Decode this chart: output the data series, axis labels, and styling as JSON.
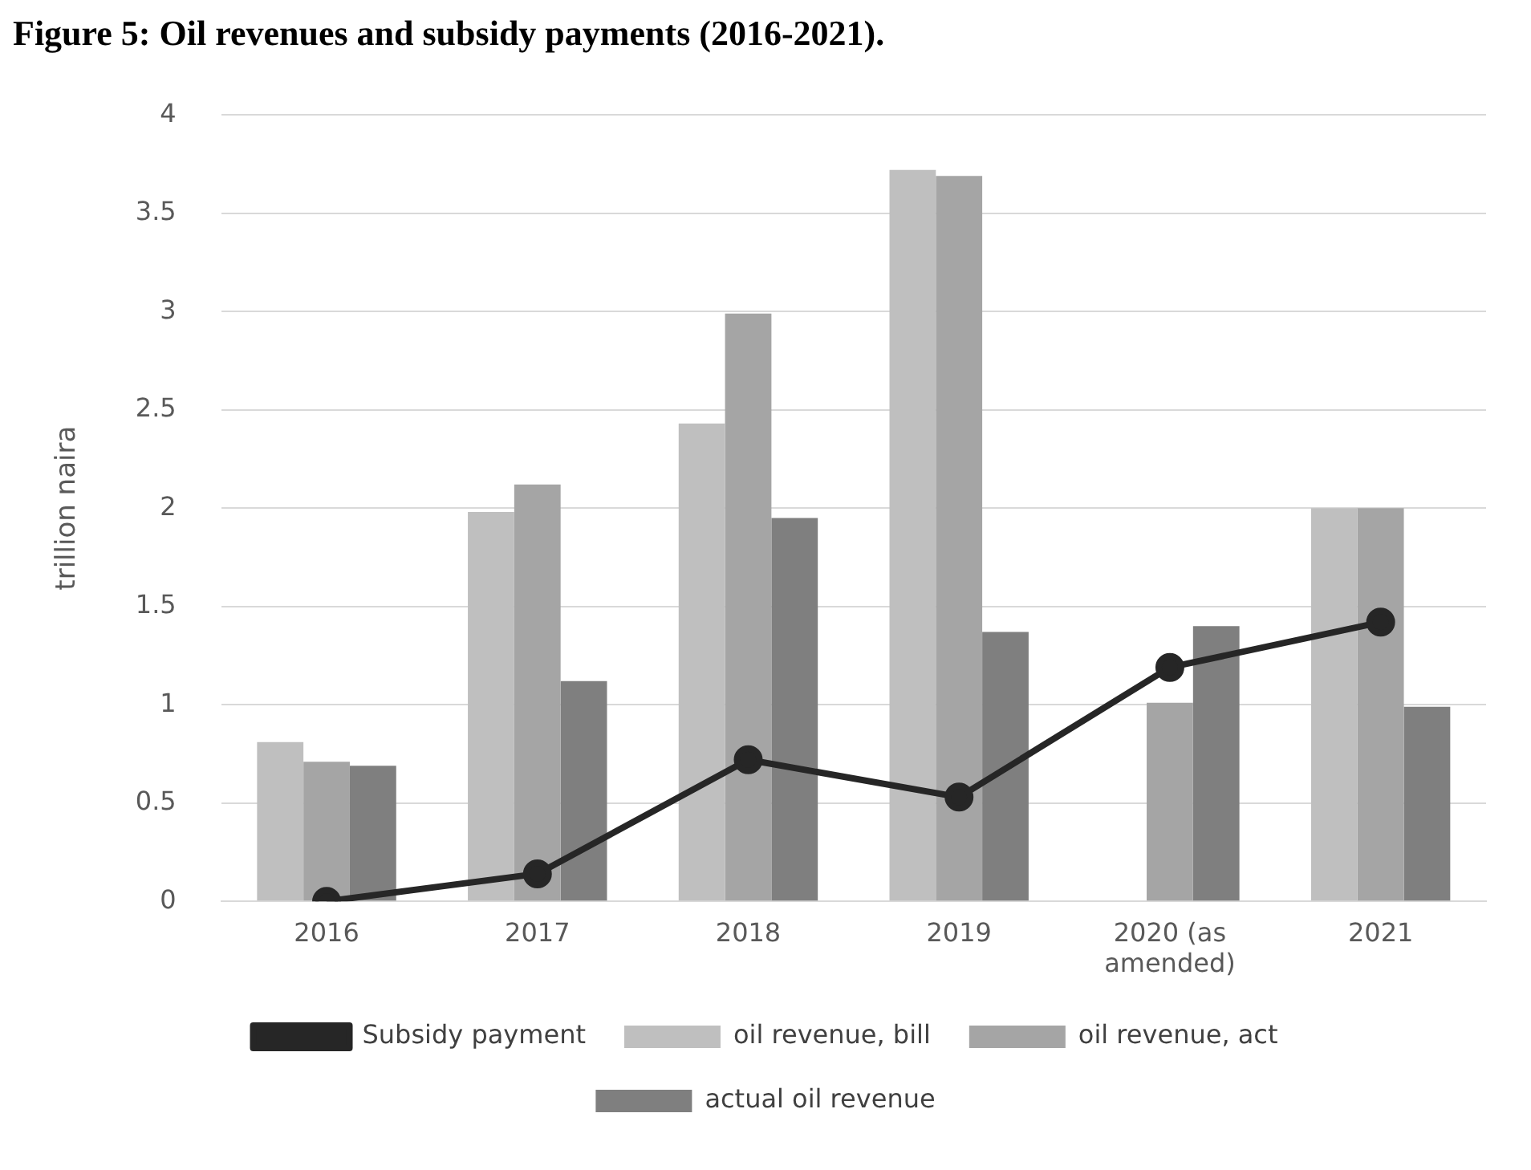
{
  "chart_data": {
    "type": "bar",
    "title": "Figure 5: Oil revenues and subsidy payments (2016-2021).",
    "ylabel": "trillion naira",
    "categories": [
      "2016",
      "2017",
      "2018",
      "2019",
      "2020 (as amended)",
      "2021"
    ],
    "series": [
      {
        "name": "oil revenue, bill",
        "color": "#bfbfbf",
        "values": [
          0.81,
          1.98,
          2.43,
          3.72,
          null,
          2.0
        ]
      },
      {
        "name": "oil revenue, act",
        "color": "#a5a5a5",
        "values": [
          0.71,
          2.12,
          2.99,
          3.69,
          1.01,
          2.0
        ]
      },
      {
        "name": "actual oil revenue",
        "color": "#7f7f7f",
        "values": [
          0.69,
          1.12,
          1.95,
          1.37,
          1.4,
          0.99
        ]
      },
      {
        "name": "Subsidy payment",
        "type": "line",
        "color": "#262626",
        "values": [
          0,
          0.14,
          0.72,
          0.53,
          1.19,
          1.42
        ]
      }
    ],
    "ylim": [
      0,
      4
    ],
    "yticks": [
      0,
      0.5,
      1,
      1.5,
      2,
      2.5,
      3,
      3.5,
      4
    ],
    "grid": "y",
    "legend": "bottom",
    "marker": "circle",
    "line_style": "solid"
  }
}
